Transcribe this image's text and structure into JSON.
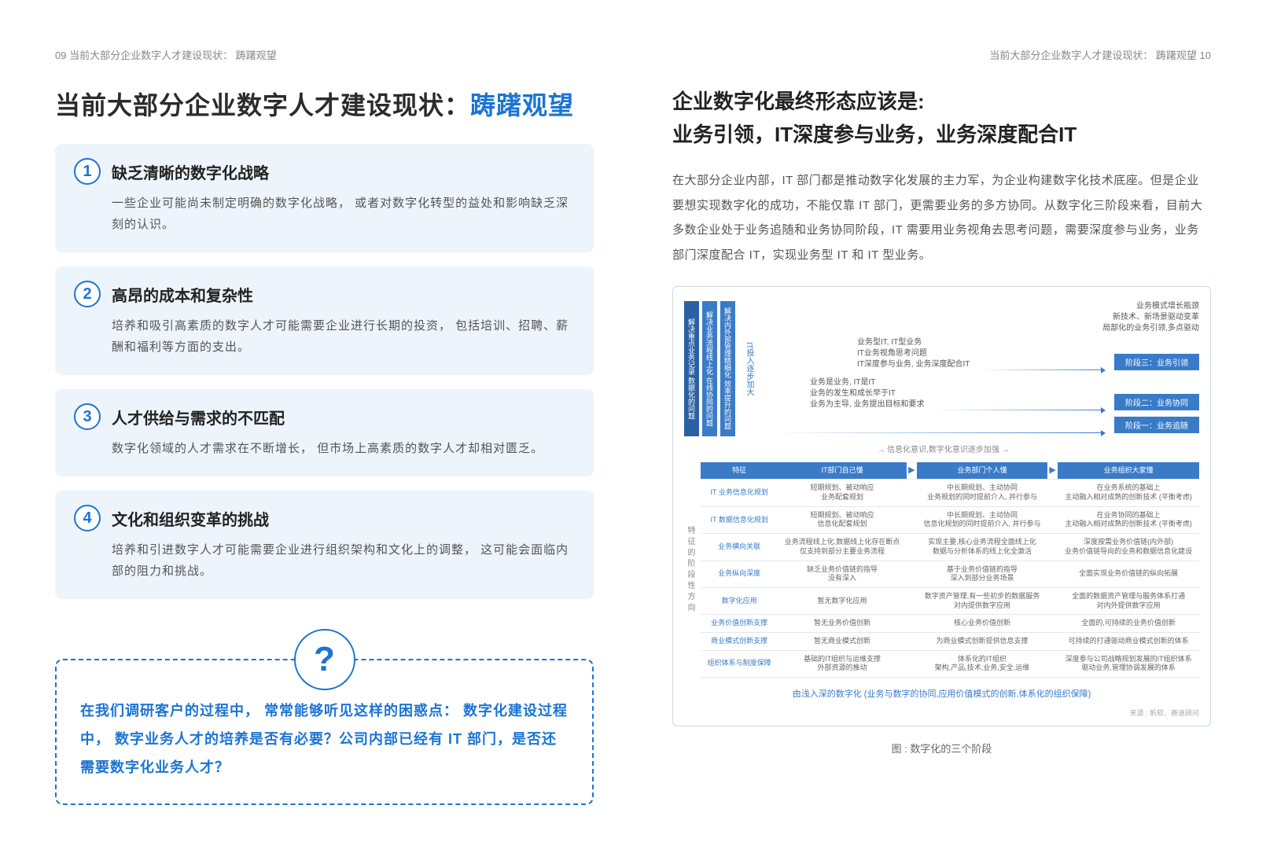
{
  "header": {
    "left": "09  当前大部分企业数字人才建设现状：  踌躇观望",
    "right": "当前大部分企业数字人才建设现状：  踌躇观望  10"
  },
  "left": {
    "title_pre": "当前大部分企业数字人才建设现状：",
    "title_accent": "踌躇观望",
    "cards": [
      {
        "n": "1",
        "t": "缺乏清晰的数字化战略",
        "b": "一些企业可能尚未制定明确的数字化战略，  或者对数字化转型的益处和影响缺乏深刻的认识。"
      },
      {
        "n": "2",
        "t": "高昂的成本和复杂性",
        "b": "培养和吸引高素质的数字人才可能需要企业进行长期的投资，  包括培训、招聘、薪酬和福利等方面的支出。"
      },
      {
        "n": "3",
        "t": "人才供给与需求的不匹配",
        "b": "数字化领域的人才需求在不断增长，  但市场上高素质的数字人才却相对匮乏。"
      },
      {
        "n": "4",
        "t": "文化和组织变革的挑战",
        "b": "培养和引进数字人才可能需要企业进行组织架构和文化上的调整，  这可能会面临内部的阻力和挑战。"
      }
    ],
    "q_mark": "?",
    "q_text": "在我们调研客户的过程中，  常常能够听见这样的困惑点：  数字化建设过程中，  数字业务人才的培养是否有必要？公司内部已经有 IT 部门，是否还需要数字化业务人才？"
  },
  "right": {
    "title1": "企业数字化最终形态应该是:",
    "title2": "业务引领，IT深度参与业务，业务深度配合IT",
    "para": "在大部分企业内部，IT 部门都是推动数字化发展的主力军，为企业构建数字化技术底座。但是企业要想实现数字化的成功，不能仅靠 IT 部门，更需要业务的多方协同。从数字化三阶段来看，目前大多数企业处于业务追随和业务协同阶段，IT 需要用业务视角去思考问题，需要深度参与业务，业务部门深度配合 IT，实现业务型 IT 和 IT 型业务。",
    "diagram": {
      "pillars": [
        "解决重点业务记录  数据化的问题",
        "解决业务流程线上化  在线协同的问题",
        "解决内外部管理精细化  效率提升的问题"
      ],
      "arrow_col": "IT投入逐步加大",
      "top_right": "业务模式增长瓶颈\n新技术、新场景驱动变革\n局部化的业务引领,多点驱动",
      "stages": [
        {
          "text": "业务型IT, IT型业务\nIT业务视角思考问题\nIT深度参与业务, 业务深度配合IT",
          "label": "阶段三：业务引领"
        },
        {
          "text": "业务是业务, IT是IT\n业务的发生和成长早于IT\n业务为主导, 业务提出目标和要求",
          "label": "阶段二：业务协同"
        },
        {
          "text": "",
          "label": "阶段一：业务追随"
        }
      ],
      "hint": "信息化意识,数字化意识逐步加强",
      "side": "特征的阶段性方向",
      "head": [
        "特征",
        "IT部门自己懂",
        "业务部门个人懂",
        "业务组织大家懂"
      ],
      "rows": [
        [
          "IT 业务信息化规划",
          "短期规划、被动响应\n业务配套规划",
          "中长期规划、主动协同\n业务规划的同时提前介入, 并行参与",
          "在业务系统的基础上\n主动融入相对成熟的创新技术 (平衡考虑)"
        ],
        [
          "IT 数据信息化规划",
          "短期规划、被动响应\n信息化配套规划",
          "中长期规划、主动协同\n信息化规划的同时提前介入, 并行参与",
          "在业务协同的基础上\n主动融入相对成熟的创新技术 (平衡考虑)"
        ],
        [
          "业务横向关联",
          "业务流程线上化,数据线上化存在断点\n仅支持到部分主要业务流程",
          "实现主要,核心业务流程全面线上化\n数据与分析体系的线上化全激活",
          "深度按需业务价值链(内外部)\n业务价值链导向的业务和数据信息化建设"
        ],
        [
          "业务纵向深度",
          "缺乏业务价值链的指导\n没有深入",
          "基于业务价值链的指导\n深入到部分业务场景",
          "全面实现业务价值链的纵向拓展"
        ],
        [
          "数字化应用",
          "暂无数字化应用",
          "数字资产管理,有一些初步的数据服务\n对内提供数字应用",
          "全面的数据资产管理与服务体系打通\n对内外提供数字应用"
        ],
        [
          "业务价值创新支撑",
          "暂无业务价值创新",
          "核心业务价值创新",
          "全面的,可持续的业务价值创新"
        ],
        [
          "商业模式创新支撑",
          "暂无商业模式创新",
          "为商业模式创新提供信息支撑",
          "可持续的打通驱动商业模式创新的体系"
        ],
        [
          "组织体系与制度保障",
          "基础的IT组织与运维支撑\n外部资源的推动",
          "体系化的IT组织\n架构,产品,技术,业务,安全,运维",
          "深度参与公司战略规划发展的IT组织体系\n驱动业务,管理协调发展的体系"
        ]
      ],
      "foot": "由浅入深的数字化 (业务与数字的协同,应用价值模式的创新,体系化的组织保障)",
      "source": "来源 : 帆软、赛迪顾问",
      "caption": "图 :  数字化的三个阶段"
    }
  }
}
